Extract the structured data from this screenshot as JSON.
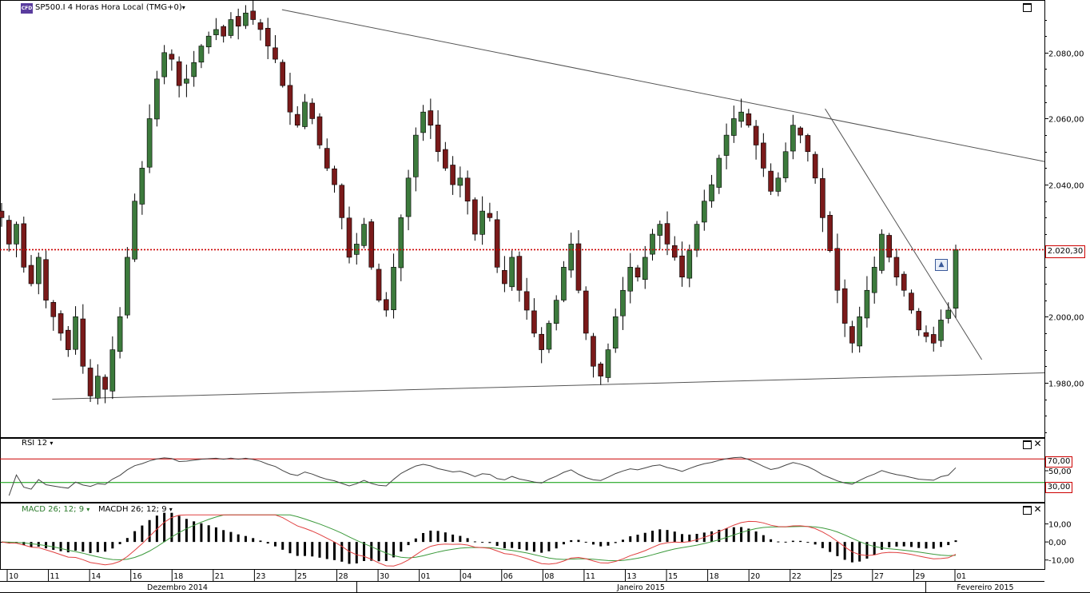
{
  "window": {
    "instrument_badge": "CFD",
    "title": "SP500.I 4 Horas Hora Local (TMG+0)",
    "caret": "▾"
  },
  "chart_data": [
    {
      "type": "candlestick",
      "name": "price",
      "last_price_label": "2.020,30",
      "last_price": 2020.3,
      "ylim": [
        1964,
        2094
      ],
      "y_ticks": [
        {
          "value": 1980,
          "label": "1.980,00"
        },
        {
          "value": 2000,
          "label": "2.000,00"
        },
        {
          "value": 2020,
          "label": "2.020,00"
        },
        {
          "value": 2040,
          "label": "2.040,00"
        },
        {
          "value": 2060,
          "label": "2.060,00"
        },
        {
          "value": 2080,
          "label": "2.080,00"
        }
      ],
      "x_labels": [
        "10",
        "11",
        "14",
        "16",
        "18",
        "21",
        "23",
        "25",
        "28",
        "30",
        "01",
        "04",
        "06",
        "08",
        "11",
        "13",
        "15",
        "18",
        "20",
        "22",
        "25",
        "27",
        "29",
        "01"
      ],
      "month_labels": [
        "Dezembro 2014",
        "Janeiro 2015",
        "Fevereiro 2015"
      ],
      "closes": [
        2030,
        2022,
        2028,
        2015,
        2010,
        2018,
        2005,
        2000,
        1995,
        1990,
        2000,
        1985,
        1976,
        1982,
        1978,
        1990,
        2000,
        2018,
        2035,
        2045,
        2060,
        2072,
        2080,
        2078,
        2070,
        2072,
        2077,
        2082,
        2085,
        2087,
        2085,
        2090,
        2088,
        2092,
        2090,
        2087,
        2082,
        2078,
        2070,
        2062,
        2058,
        2065,
        2060,
        2052,
        2045,
        2040,
        2030,
        2018,
        2022,
        2028,
        2015,
        2005,
        2002,
        2015,
        2030,
        2042,
        2055,
        2062,
        2058,
        2050,
        2045,
        2040,
        2042,
        2035,
        2025,
        2032,
        2030,
        2015,
        2010,
        2018,
        2008,
        2002,
        1995,
        1990,
        1998,
        2005,
        2015,
        2022,
        2008,
        1995,
        1985,
        1982,
        1990,
        2000,
        2008,
        2015,
        2012,
        2018,
        2025,
        2028,
        2022,
        2018,
        2012,
        2020,
        2028,
        2035,
        2040,
        2048,
        2055,
        2060,
        2062,
        2058,
        2052,
        2045,
        2038,
        2042,
        2050,
        2058,
        2055,
        2050,
        2042,
        2030,
        2020,
        2008,
        1998,
        1992,
        2000,
        2008,
        2015,
        2025,
        2018,
        2012,
        2008,
        2002,
        1996,
        1994,
        1992,
        1999,
        2002,
        2020.3
      ],
      "hlines": [
        {
          "value": 2020.3,
          "color": "#cc0000",
          "style": "dotted"
        }
      ],
      "trendlines": [
        {
          "from": [
            0.27,
            2093
          ],
          "to": [
            1.0,
            2047
          ]
        },
        {
          "from": [
            0.05,
            1975
          ],
          "to": [
            1.0,
            1983
          ]
        },
        {
          "from": [
            0.79,
            2063
          ],
          "to": [
            0.94,
            1987
          ]
        }
      ]
    },
    {
      "type": "line",
      "name": "RSI 12",
      "label": "RSI 12",
      "ylim": [
        0,
        100
      ],
      "levels": [
        {
          "value": 70,
          "label": "70,00",
          "color": "#cc0000"
        },
        {
          "value": 30,
          "label": "30,00",
          "color": "#009900"
        }
      ],
      "y_ticks": [
        {
          "value": 50,
          "label": "50,00"
        }
      ]
    },
    {
      "type": "line",
      "name": "MACD",
      "label_macd": "MACD 26; 12; 9",
      "label_macdh": "MACDH 26; 12; 9",
      "ylim": [
        -15,
        16
      ],
      "y_ticks": [
        {
          "value": 10,
          "label": "10,00"
        },
        {
          "value": 0,
          "label": "0,00"
        },
        {
          "value": -10,
          "label": "-10,00"
        }
      ],
      "colors": {
        "macd": "#e04040",
        "signal": "#3c9a3c",
        "histogram": "#000000"
      }
    }
  ],
  "colors": {
    "bull": "#3c7a3c",
    "bear": "#7a1a1a",
    "wick": "#000000",
    "grid": "#000000",
    "price_line": "#cc0000"
  }
}
